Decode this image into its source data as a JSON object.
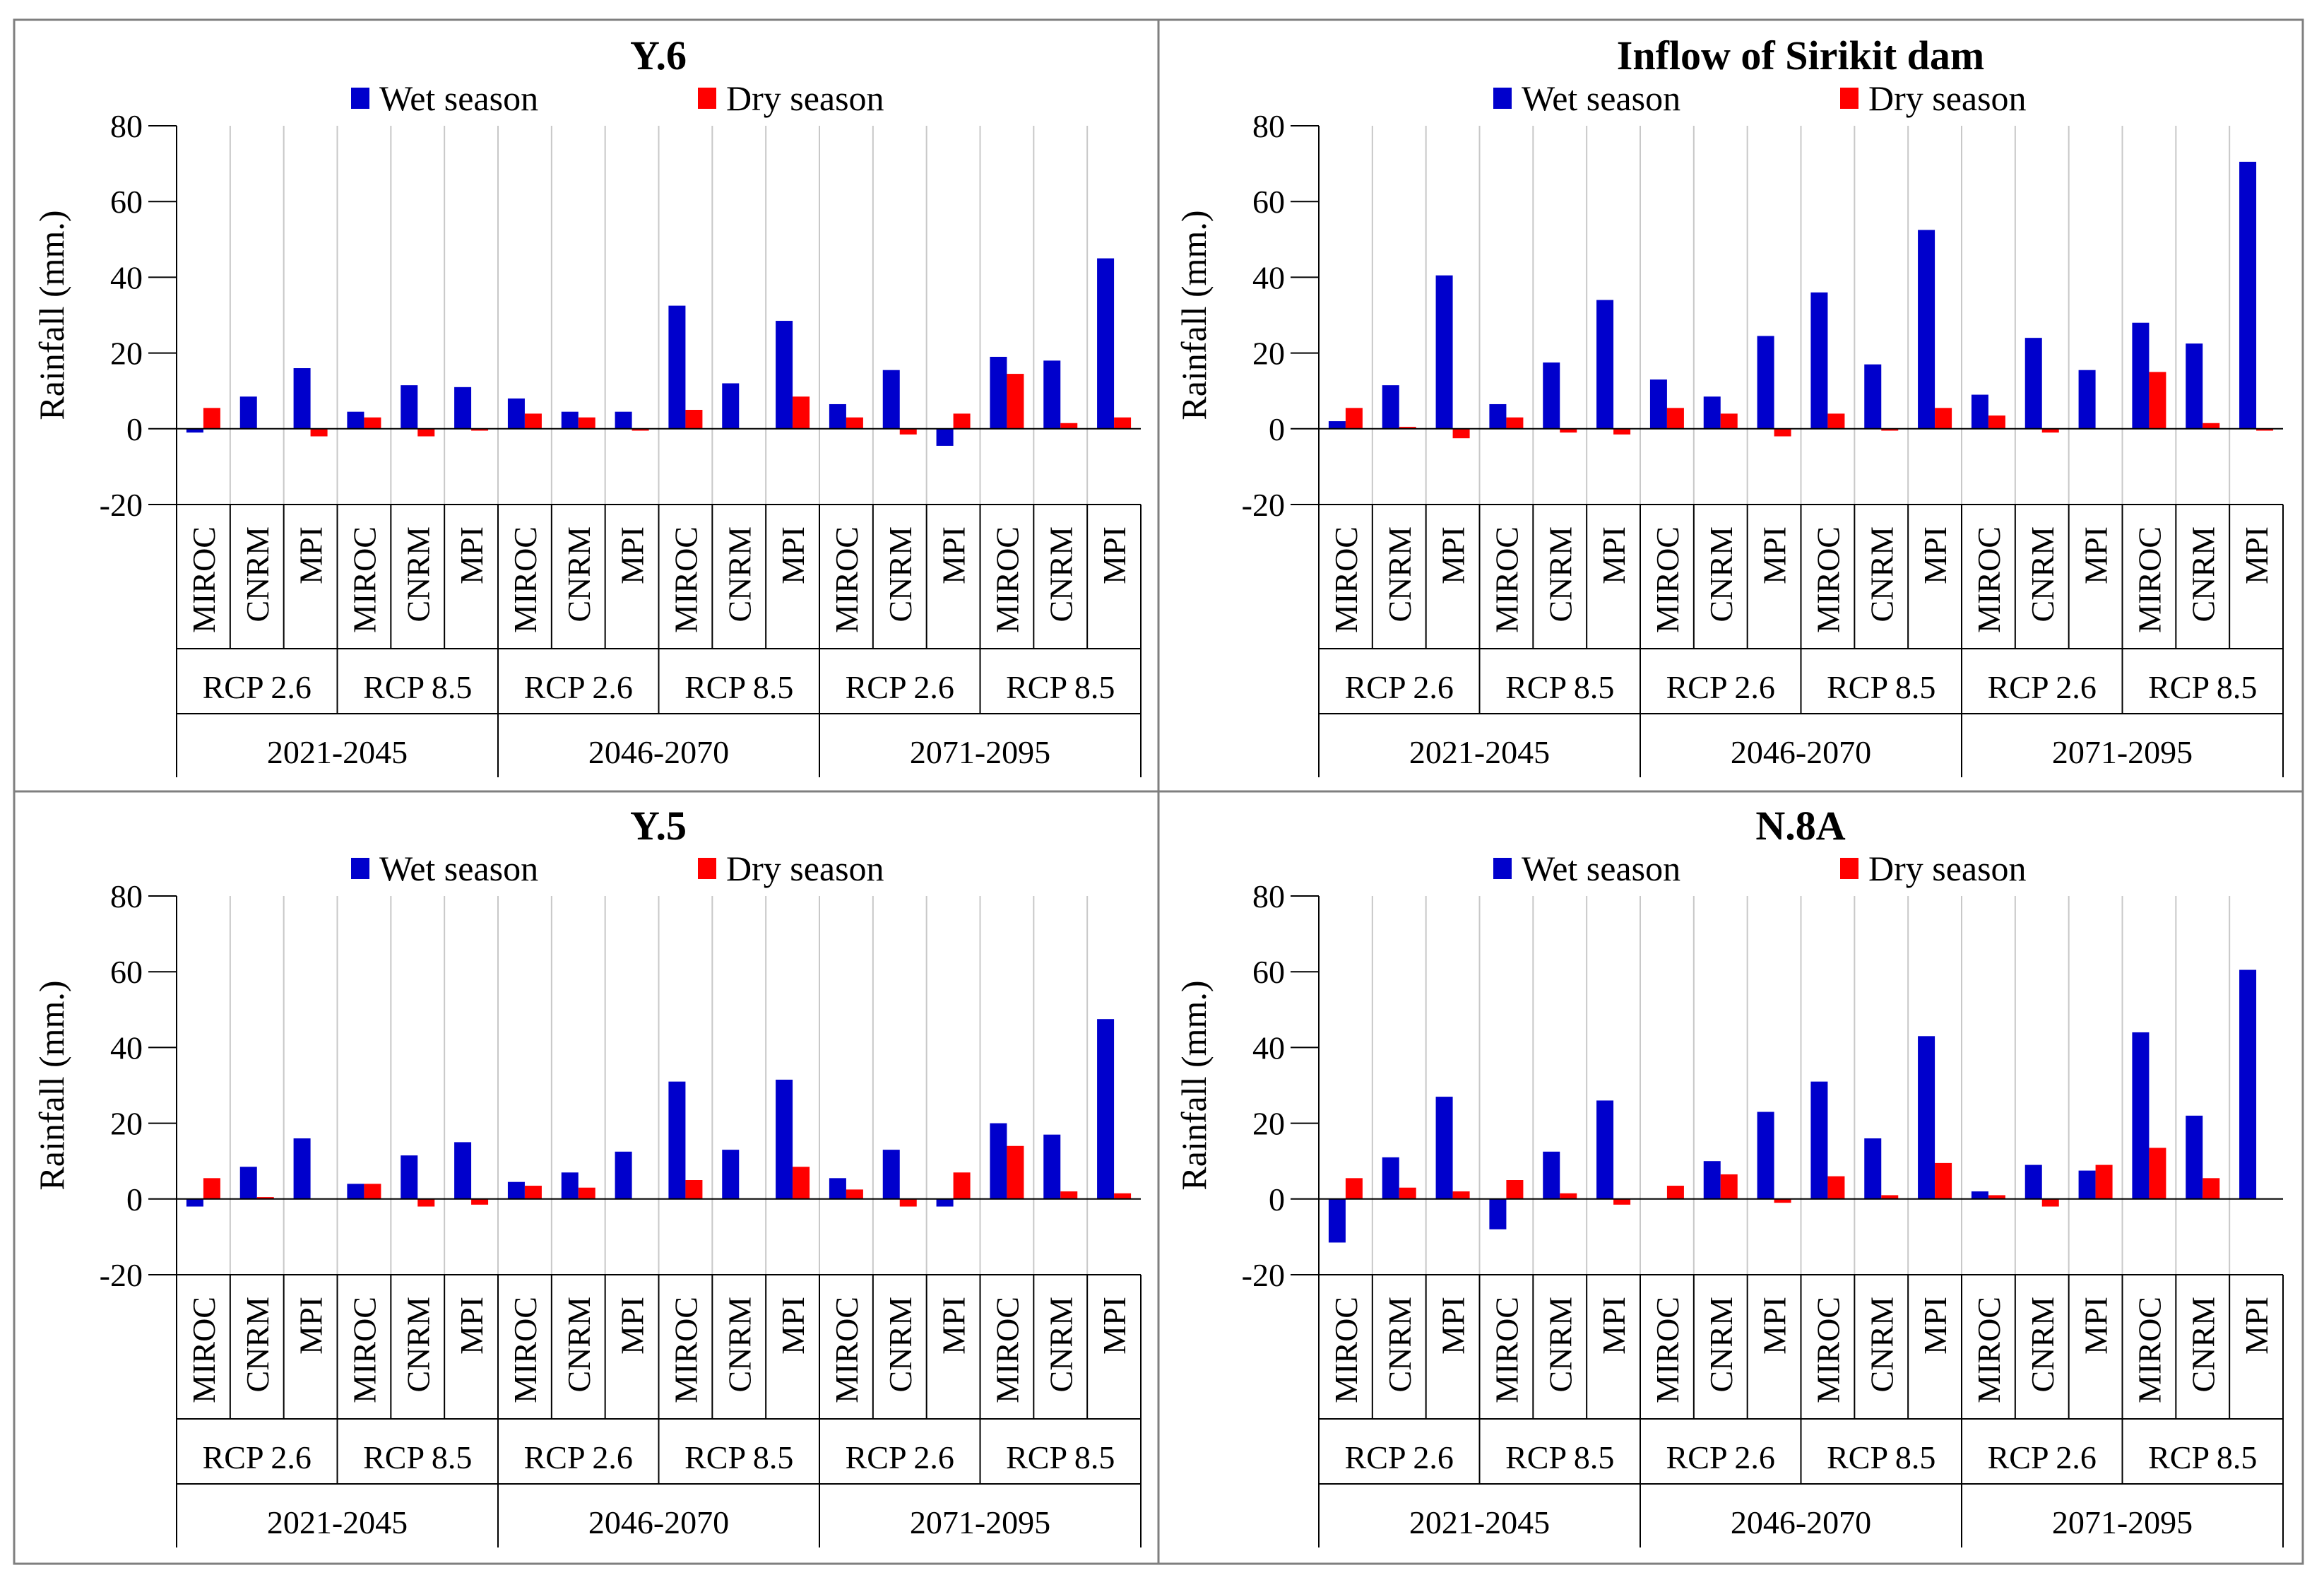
{
  "colors": {
    "wet": "#0000CC",
    "dry": "#FF0000",
    "grid": "#C8C8C8",
    "axis": "#000000",
    "border": "#7F7F7F"
  },
  "legend": {
    "wet": "Wet season",
    "dry": "Dry season"
  },
  "ylabel": "Rainfall (mm.)",
  "models": [
    "MIROC",
    "CNRM",
    "MPI"
  ],
  "scenarios": [
    "RCP 2.6",
    "RCP 8.5"
  ],
  "periods": [
    "2021-2045",
    "2046-2070",
    "2071-2095"
  ],
  "yticks": [
    "80",
    "60",
    "40",
    "20",
    "0",
    "-20"
  ],
  "chart_data": [
    {
      "type": "bar",
      "title": "Y.6",
      "ylabel": "Rainfall (mm.)",
      "ylim": [
        -20,
        80
      ],
      "categories": [
        "2021-2045 RCP 2.6 MIROC",
        "2021-2045 RCP 2.6 CNRM",
        "2021-2045 RCP 2.6 MPI",
        "2021-2045 RCP 8.5 MIROC",
        "2021-2045 RCP 8.5 CNRM",
        "2021-2045 RCP 8.5 MPI",
        "2046-2070 RCP 2.6 MIROC",
        "2046-2070 RCP 2.6 CNRM",
        "2046-2070 RCP 2.6 MPI",
        "2046-2070 RCP 8.5 MIROC",
        "2046-2070 RCP 8.5 CNRM",
        "2046-2070 RCP 8.5 MPI",
        "2071-2095 RCP 2.6 MIROC",
        "2071-2095 RCP 2.6 CNRM",
        "2071-2095 RCP 2.6 MPI",
        "2071-2095 RCP 8.5 MIROC",
        "2071-2095 RCP 8.5 CNRM",
        "2071-2095 RCP 8.5 MPI"
      ],
      "series": [
        {
          "name": "Wet season",
          "values": [
            -1,
            8.5,
            16,
            4.5,
            11.5,
            11,
            8,
            4.5,
            4.5,
            32.5,
            12,
            28.5,
            6.5,
            15.5,
            -4.5,
            19,
            18,
            45
          ]
        },
        {
          "name": "Dry season",
          "values": [
            5.5,
            0,
            -2,
            3,
            -2,
            -0.5,
            4,
            3,
            -0.5,
            5,
            0,
            8.5,
            3,
            -1.5,
            4,
            14.5,
            1.5,
            3
          ]
        }
      ]
    },
    {
      "type": "bar",
      "title": "Inflow of Sirikit dam",
      "ylabel": "Rainfall (mm.)",
      "ylim": [
        -20,
        80
      ],
      "categories": [
        "2021-2045 RCP 2.6 MIROC",
        "2021-2045 RCP 2.6 CNRM",
        "2021-2045 RCP 2.6 MPI",
        "2021-2045 RCP 8.5 MIROC",
        "2021-2045 RCP 8.5 CNRM",
        "2021-2045 RCP 8.5 MPI",
        "2046-2070 RCP 2.6 MIROC",
        "2046-2070 RCP 2.6 CNRM",
        "2046-2070 RCP 2.6 MPI",
        "2046-2070 RCP 8.5 MIROC",
        "2046-2070 RCP 8.5 CNRM",
        "2046-2070 RCP 8.5 MPI",
        "2071-2095 RCP 2.6 MIROC",
        "2071-2095 RCP 2.6 CNRM",
        "2071-2095 RCP 2.6 MPI",
        "2071-2095 RCP 8.5 MIROC",
        "2071-2095 RCP 8.5 CNRM",
        "2071-2095 RCP 8.5 MPI"
      ],
      "series": [
        {
          "name": "Wet season",
          "values": [
            2,
            11.5,
            40.5,
            6.5,
            17.5,
            34,
            13,
            8.5,
            24.5,
            36,
            17,
            52.5,
            9,
            24,
            15.5,
            28,
            22.5,
            70.5
          ]
        },
        {
          "name": "Dry season",
          "values": [
            5.5,
            0.5,
            -2.5,
            3,
            -1,
            -1.5,
            5.5,
            4,
            -2,
            4,
            -0.5,
            5.5,
            3.5,
            -1,
            0,
            15,
            1.5,
            -0.5
          ]
        }
      ]
    },
    {
      "type": "bar",
      "title": "Y.5",
      "ylabel": "Rainfall (mm.)",
      "ylim": [
        -20,
        80
      ],
      "categories": [
        "2021-2045 RCP 2.6 MIROC",
        "2021-2045 RCP 2.6 CNRM",
        "2021-2045 RCP 2.6 MPI",
        "2021-2045 RCP 8.5 MIROC",
        "2021-2045 RCP 8.5 CNRM",
        "2021-2045 RCP 8.5 MPI",
        "2046-2070 RCP 2.6 MIROC",
        "2046-2070 RCP 2.6 CNRM",
        "2046-2070 RCP 2.6 MPI",
        "2046-2070 RCP 8.5 MIROC",
        "2046-2070 RCP 8.5 CNRM",
        "2046-2070 RCP 8.5 MPI",
        "2071-2095 RCP 2.6 MIROC",
        "2071-2095 RCP 2.6 CNRM",
        "2071-2095 RCP 2.6 MPI",
        "2071-2095 RCP 8.5 MIROC",
        "2071-2095 RCP 8.5 CNRM",
        "2071-2095 RCP 8.5 MPI"
      ],
      "series": [
        {
          "name": "Wet season",
          "values": [
            -2,
            8.5,
            16,
            4,
            11.5,
            15,
            4.5,
            7,
            12.5,
            31,
            13,
            31.5,
            5.5,
            13,
            -2,
            20,
            17,
            47.5
          ]
        },
        {
          "name": "Dry season",
          "values": [
            5.5,
            0.5,
            0,
            4,
            -2,
            -1.5,
            3.5,
            3,
            0,
            5,
            0,
            8.5,
            2.5,
            -2,
            7,
            14,
            2,
            1.5
          ]
        }
      ]
    },
    {
      "type": "bar",
      "title": "N.8A",
      "ylabel": "Rainfall (mm.)",
      "ylim": [
        -20,
        80
      ],
      "categories": [
        "2021-2045 RCP 2.6 MIROC",
        "2021-2045 RCP 2.6 CNRM",
        "2021-2045 RCP 2.6 MPI",
        "2021-2045 RCP 8.5 MIROC",
        "2021-2045 RCP 8.5 CNRM",
        "2021-2045 RCP 8.5 MPI",
        "2046-2070 RCP 2.6 MIROC",
        "2046-2070 RCP 2.6 CNRM",
        "2046-2070 RCP 2.6 MPI",
        "2046-2070 RCP 8.5 MIROC",
        "2046-2070 RCP 8.5 CNRM",
        "2046-2070 RCP 8.5 MPI",
        "2071-2095 RCP 2.6 MIROC",
        "2071-2095 RCP 2.6 CNRM",
        "2071-2095 RCP 2.6 MPI",
        "2071-2095 RCP 8.5 MIROC",
        "2071-2095 RCP 8.5 CNRM",
        "2071-2095 RCP 8.5 MPI"
      ],
      "series": [
        {
          "name": "Wet season",
          "values": [
            -11.5,
            11,
            27,
            -8,
            12.5,
            26,
            0,
            10,
            23,
            31,
            16,
            43,
            2,
            9,
            7.5,
            44,
            22,
            60.5
          ]
        },
        {
          "name": "Dry season",
          "values": [
            5.5,
            3,
            2,
            5,
            1.5,
            -1.5,
            3.5,
            6.5,
            -1,
            6,
            1,
            9.5,
            1,
            -2,
            9,
            13.5,
            5.5,
            0
          ]
        }
      ]
    }
  ]
}
